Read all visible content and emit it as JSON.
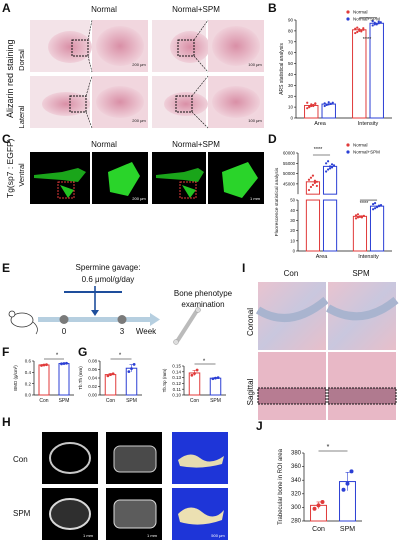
{
  "panels": {
    "A": {
      "letter": "A",
      "side_label": "Alizarin red staining",
      "col1": "Normal",
      "col2": "Normal+SPM",
      "row1": "Dorsal",
      "row2": "Lateral",
      "scale_small": "200 μm",
      "scale_large": "100 μm"
    },
    "B": {
      "letter": "B",
      "legend": [
        "Normal",
        "Normal+SPM"
      ],
      "sig": "****"
    },
    "C": {
      "letter": "C",
      "side_label": "Tg(sp7 : EGFP)",
      "col1": "Normal",
      "col2": "Normal+SPM",
      "row1": "Ventral",
      "scale_small": "200 μm",
      "scale_large": "1 mm"
    },
    "D": {
      "letter": "D",
      "legend": [
        "Normal",
        "Normal+SPM"
      ],
      "sig1": "****",
      "sig2": "****"
    },
    "E": {
      "letter": "E",
      "line1": "Spermine gavage:",
      "line2": "0.6 μmol/g/day",
      "exam1": "Bone phenotype",
      "exam2": "examination",
      "t0": "0",
      "t3": "3",
      "week": "Week"
    },
    "F": {
      "letter": "F",
      "sig": "*"
    },
    "G": {
      "letter": "G",
      "sig1": "*",
      "sig2": "*"
    },
    "H": {
      "letter": "H",
      "row1": "Con",
      "row2": "SPM",
      "scale_a": "1 mm",
      "scale_b": "1 mm",
      "scale_c": "500 μm"
    },
    "I": {
      "letter": "I",
      "col1": "Con",
      "col2": "SPM",
      "row1": "Coronal",
      "row2": "Sagittal"
    },
    "J": {
      "letter": "J",
      "sig": "*"
    }
  },
  "chart_data": [
    {
      "id": "B",
      "type": "bar",
      "title": "",
      "xlabel": "",
      "ylabel": "ARS statistical analysis",
      "categories": [
        "Area",
        "Intensity"
      ],
      "series": [
        {
          "name": "Normal",
          "values": [
            11.5,
            81
          ],
          "color": "#e03a3a",
          "points": [
            [
              9,
              10,
              11,
              12,
              13,
              14,
              10.5,
              12.5,
              11,
              13.5
            ],
            [
              78,
              79,
              80,
              80.5,
              81,
              82,
              83,
              81.5,
              79.5,
              82.5
            ]
          ]
        },
        {
          "name": "Normal+SPM",
          "values": [
            12.8,
            87
          ],
          "color": "#2b3fd4",
          "points": [
            [
              11,
              12,
              12.5,
              13,
              14,
              13.5,
              12,
              14.5,
              13
            ],
            [
              85,
              86,
              86.5,
              87,
              88,
              89,
              87.5,
              86,
              88.5
            ]
          ]
        }
      ],
      "ylim": [
        0,
        90
      ],
      "yticks": [
        0,
        10,
        20,
        30,
        40,
        50,
        60,
        70,
        80,
        90
      ],
      "legend": "top-right"
    },
    {
      "id": "D",
      "type": "bar",
      "title": "",
      "xlabel": "",
      "ylabel": "Fluorescence statistical analysis",
      "categories": [
        "Area",
        "Intensity"
      ],
      "ylim": [
        0,
        60000
      ],
      "yticks": [
        0,
        10,
        20,
        30,
        40,
        50,
        45000,
        50000,
        55000,
        60000
      ],
      "axis_break": true,
      "series": [
        {
          "name": "Normal",
          "values": [
            46000,
            34
          ],
          "color": "#e03a3a",
          "points": [
            [
              42000,
              43500,
              44500,
              45500,
              46000,
              47000,
              48000,
              49000,
              46500,
              44000
            ],
            [
              32,
              33,
              33.5,
              34,
              34.5,
              35,
              36,
              34,
              33
            ]
          ]
        },
        {
          "name": "Normal+SPM",
          "values": [
            53500,
            44
          ],
          "color": "#2b3fd4",
          "points": [
            [
              51000,
              52000,
              52500,
              53000,
              54000,
              55000,
              56000,
              53500,
              54500
            ],
            [
              41,
              42,
              43,
              44,
              45,
              46,
              47,
              43.5,
              44.5
            ]
          ]
        }
      ],
      "legend": "top-right"
    },
    {
      "id": "F",
      "type": "bar",
      "title": "",
      "xlabel": "",
      "ylabel": "BMD (g/cm³)",
      "categories": [
        "Con",
        "SPM"
      ],
      "values": [
        0.53,
        0.555
      ],
      "colors": [
        "#e03a3a",
        "#2b3fd4"
      ],
      "points": [
        [
          0.52,
          0.53,
          0.535
        ],
        [
          0.55,
          0.555,
          0.56
        ]
      ],
      "ylim": [
        0.0,
        0.6
      ],
      "yticks": [
        0.0,
        0.2,
        0.4,
        0.6
      ]
    },
    {
      "id": "G1",
      "type": "bar",
      "title": "",
      "xlabel": "",
      "ylabel": "Tb.Th (mm)",
      "categories": [
        "Con",
        "SPM"
      ],
      "values": [
        0.048,
        0.063
      ],
      "colors": [
        "#e03a3a",
        "#2b3fd4"
      ],
      "points": [
        [
          0.045,
          0.048,
          0.05
        ],
        [
          0.055,
          0.062,
          0.072
        ]
      ],
      "ylim": [
        0.0,
        0.08
      ],
      "yticks": [
        0.0,
        0.02,
        0.04,
        0.06,
        0.08
      ]
    },
    {
      "id": "G2",
      "type": "bar",
      "title": "",
      "xlabel": "",
      "ylabel": "Tb.Sp (mm)",
      "categories": [
        "Con",
        "SPM"
      ],
      "values": [
        0.138,
        0.129
      ],
      "colors": [
        "#e03a3a",
        "#2b3fd4"
      ],
      "points": [
        [
          0.134,
          0.137,
          0.143
        ],
        [
          0.128,
          0.129,
          0.13
        ]
      ],
      "ylim": [
        0.1,
        0.15
      ],
      "yticks": [
        0.1,
        0.11,
        0.12,
        0.13,
        0.14,
        0.15
      ]
    },
    {
      "id": "J",
      "type": "bar",
      "title": "",
      "xlabel": "",
      "ylabel": "Trabecular bone in ROI area",
      "categories": [
        "Con",
        "SPM"
      ],
      "values": [
        303,
        338
      ],
      "colors": [
        "#e03a3a",
        "#2b3fd4"
      ],
      "points": [
        [
          298,
          303,
          308
        ],
        [
          326,
          335,
          353
        ]
      ],
      "ylim": [
        280,
        380
      ],
      "yticks": [
        280,
        300,
        320,
        340,
        360,
        380
      ]
    }
  ]
}
